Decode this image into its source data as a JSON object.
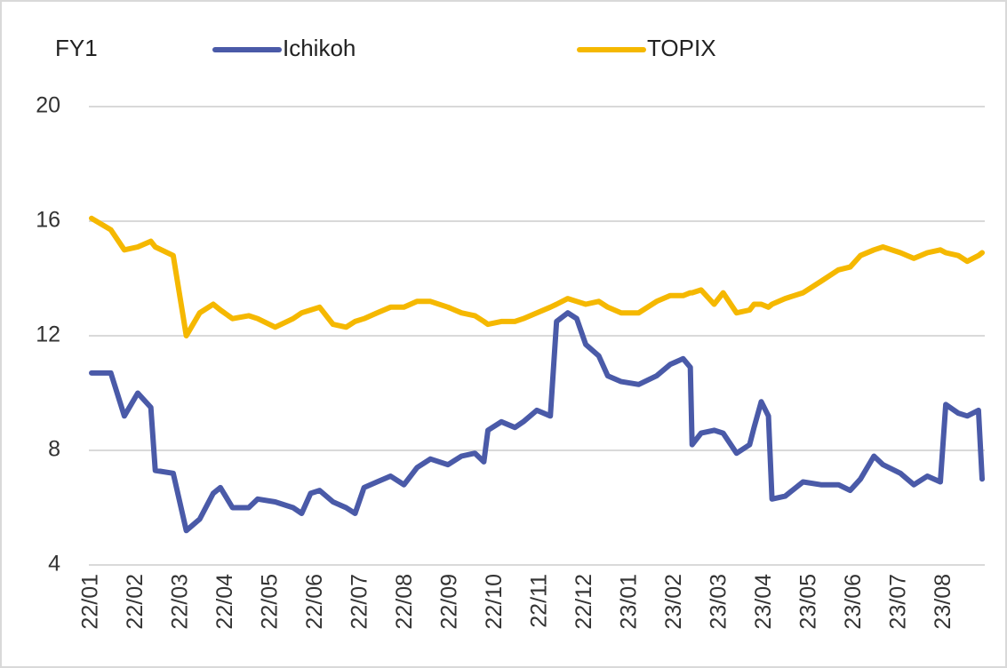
{
  "chart_data": {
    "type": "line",
    "y_label": "FY1",
    "x": [
      0,
      0.43,
      0.73,
      1.03,
      1.32,
      1.42,
      1.82,
      2.11,
      2.41,
      2.71,
      2.87,
      3.14,
      3.5,
      3.7,
      4.09,
      4.49,
      4.68,
      4.88,
      5.08,
      5.38,
      5.67,
      5.87,
      6.07,
      6.36,
      6.66,
      6.96,
      7.25,
      7.55,
      7.94,
      8.24,
      8.54,
      8.74,
      8.83,
      9.13,
      9.43,
      9.62,
      9.92,
      10.22,
      10.36,
      10.61,
      10.81,
      11.01,
      11.3,
      11.5,
      11.8,
      12.19,
      12.59,
      12.89,
      13.18,
      13.34,
      13.38,
      13.58,
      13.87,
      14.07,
      14.37,
      14.66,
      14.76,
      14.92,
      15.08,
      15.16,
      15.45,
      15.85,
      16.25,
      16.64,
      16.9,
      17.13,
      17.43,
      17.63,
      18.02,
      18.32,
      18.62,
      18.91,
      19.03,
      19.31,
      19.51,
      19.76,
      19.84
    ],
    "series": [
      {
        "name": "Ichikoh",
        "color": "#4a5aa8",
        "values": [
          10.7,
          10.7,
          9.2,
          10.0,
          9.5,
          7.3,
          7.2,
          5.2,
          5.6,
          6.5,
          6.7,
          6.0,
          6.0,
          6.3,
          6.2,
          6.0,
          5.8,
          6.5,
          6.6,
          6.2,
          6.0,
          5.8,
          6.7,
          6.9,
          7.1,
          6.8,
          7.4,
          7.7,
          7.5,
          7.8,
          7.9,
          7.6,
          8.7,
          9.0,
          8.8,
          9.0,
          9.4,
          9.2,
          12.5,
          12.8,
          12.6,
          11.7,
          11.3,
          10.6,
          10.4,
          10.3,
          10.6,
          11.0,
          11.2,
          10.9,
          8.2,
          8.6,
          8.7,
          8.6,
          7.9,
          8.2,
          8.8,
          9.7,
          9.2,
          6.3,
          6.4,
          6.9,
          6.8,
          6.8,
          6.6,
          7.0,
          7.8,
          7.5,
          7.2,
          6.8,
          7.1,
          6.9,
          9.6,
          9.3,
          9.2,
          9.4,
          7.0
        ]
      },
      {
        "name": "TOPIX",
        "color": "#f5b800",
        "values": [
          16.1,
          15.7,
          15.0,
          15.1,
          15.3,
          15.1,
          14.8,
          12.0,
          12.8,
          13.1,
          12.9,
          12.6,
          12.7,
          12.6,
          12.3,
          12.6,
          12.8,
          12.9,
          13.0,
          12.4,
          12.3,
          12.5,
          12.6,
          12.8,
          13.0,
          13.0,
          13.2,
          13.2,
          13.0,
          12.8,
          12.7,
          12.5,
          12.4,
          12.5,
          12.5,
          12.6,
          12.8,
          13.0,
          13.1,
          13.3,
          13.2,
          13.1,
          13.2,
          13.0,
          12.8,
          12.8,
          13.2,
          13.4,
          13.4,
          13.5,
          13.5,
          13.6,
          13.1,
          13.5,
          12.8,
          12.9,
          13.1,
          13.1,
          13.0,
          13.1,
          13.3,
          13.5,
          13.9,
          14.3,
          14.4,
          14.8,
          15.0,
          15.1,
          14.9,
          14.7,
          14.9,
          15.0,
          14.9,
          14.8,
          14.6,
          14.8,
          14.9
        ]
      }
    ],
    "xlim": [
      -0.06,
      19.9
    ],
    "xticks": [
      {
        "value": 0,
        "label": "22/01"
      },
      {
        "value": 1,
        "label": "22/02"
      },
      {
        "value": 2,
        "label": "22/03"
      },
      {
        "value": 3,
        "label": "22/04"
      },
      {
        "value": 4,
        "label": "22/05"
      },
      {
        "value": 5,
        "label": "22/06"
      },
      {
        "value": 6,
        "label": "22/07"
      },
      {
        "value": 7,
        "label": "22/08"
      },
      {
        "value": 8,
        "label": "22/09"
      },
      {
        "value": 9,
        "label": "22/10"
      },
      {
        "value": 10,
        "label": "22/11"
      },
      {
        "value": 11,
        "label": "22/12"
      },
      {
        "value": 12,
        "label": "23/01"
      },
      {
        "value": 13,
        "label": "23/02"
      },
      {
        "value": 14,
        "label": "23/03"
      },
      {
        "value": 15,
        "label": "23/04"
      },
      {
        "value": 16,
        "label": "23/05"
      },
      {
        "value": 17,
        "label": "23/06"
      },
      {
        "value": 18,
        "label": "23/07"
      },
      {
        "value": 19,
        "label": "23/08"
      }
    ],
    "ylim": [
      4,
      20
    ],
    "yticks": [
      4,
      8,
      12,
      16,
      20
    ],
    "grid": true
  }
}
